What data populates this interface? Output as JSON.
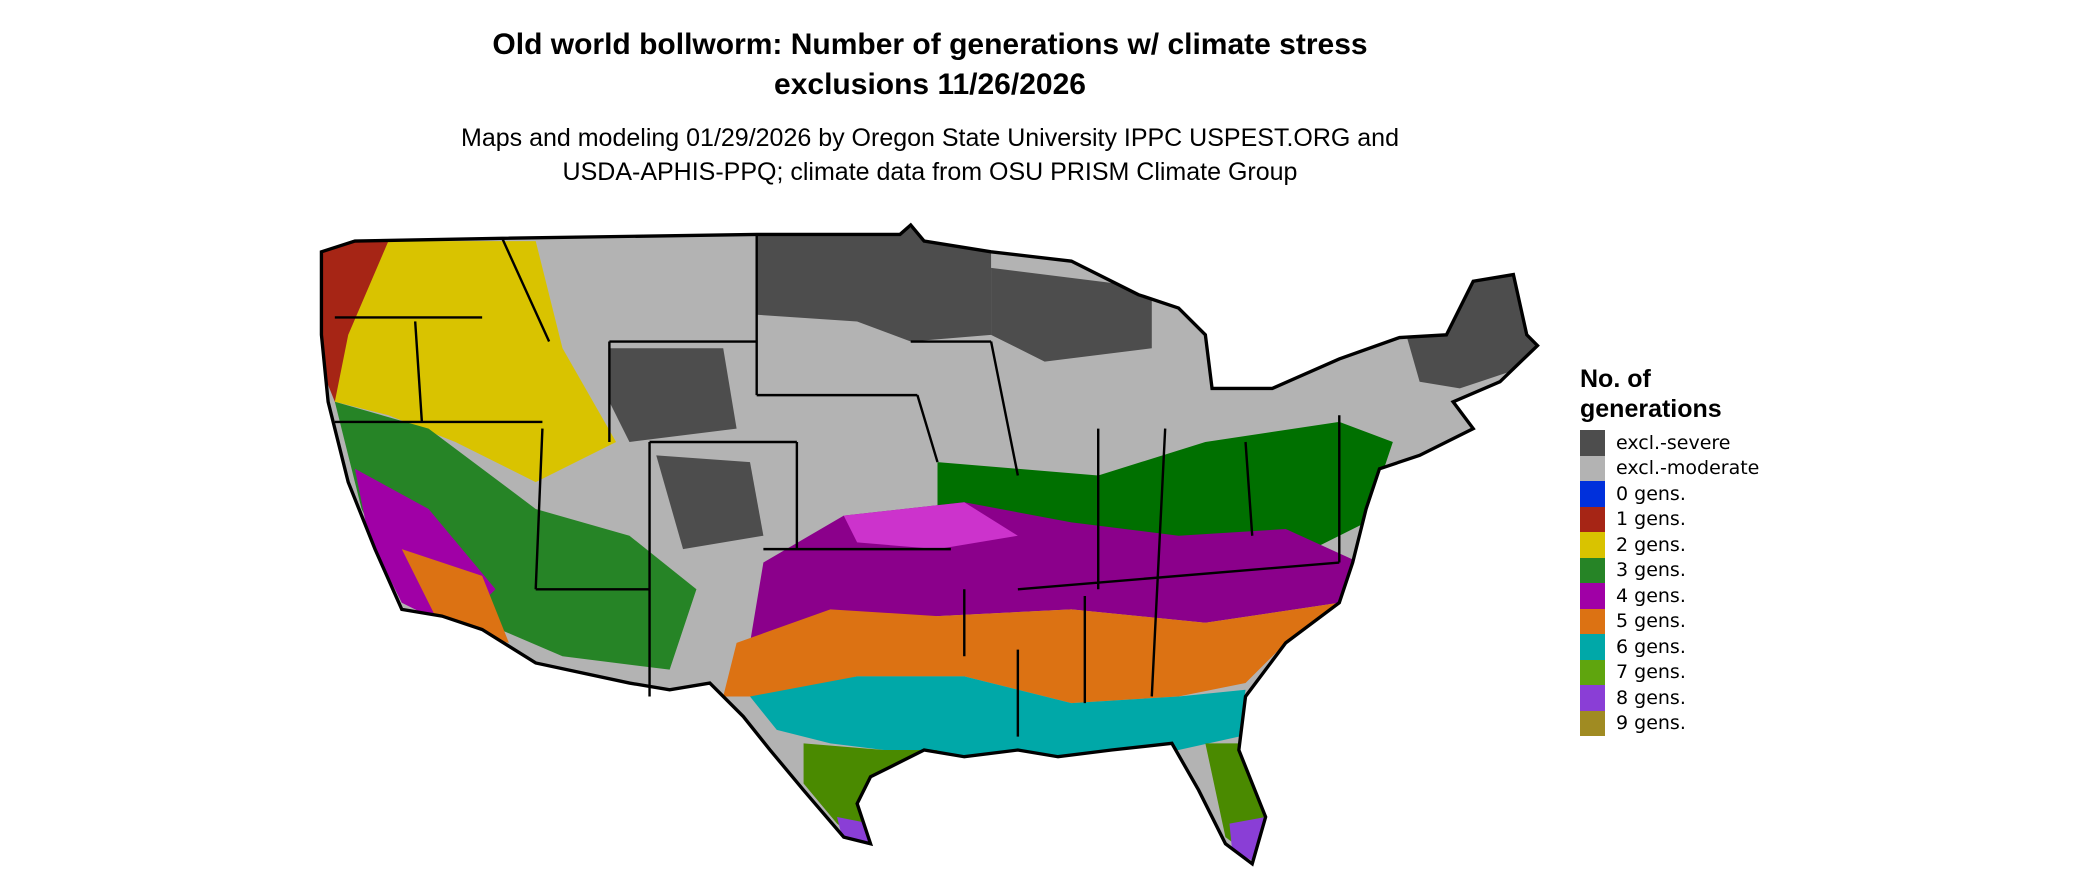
{
  "title": {
    "line1": "Old world bollworm: Number of generations w/ climate stress",
    "line2": "exclusions 11/26/2026"
  },
  "subtitle": {
    "line1": "Maps and modeling 01/29/2026 by Oregon State University IPPC USPEST.ORG and",
    "line2": "USDA-APHIS-PPQ; climate data from OSU PRISM Climate Group"
  },
  "legend": {
    "title_line1": "No. of",
    "title_line2": "generations",
    "items": [
      {
        "label": "excl.-severe",
        "color": "#4d4d4d"
      },
      {
        "label": "excl.-moderate",
        "color": "#b3b3b3"
      },
      {
        "label": "0 gens.",
        "color": "#0030dc"
      },
      {
        "label": "1 gens.",
        "color": "#a62515"
      },
      {
        "label": "2 gens.",
        "color": "#d9c300"
      },
      {
        "label": "3 gens.",
        "color": "#268426"
      },
      {
        "label": "4 gens.",
        "color": "#a000a6"
      },
      {
        "label": "5 gens.",
        "color": "#dc7213"
      },
      {
        "label": "6 gens.",
        "color": "#00a8a8"
      },
      {
        "label": "7 gens.",
        "color": "#5fa50e"
      },
      {
        "label": "8 gens.",
        "color": "#8a3ed6"
      },
      {
        "label": "9 gens.",
        "color": "#a08b22"
      }
    ]
  }
}
